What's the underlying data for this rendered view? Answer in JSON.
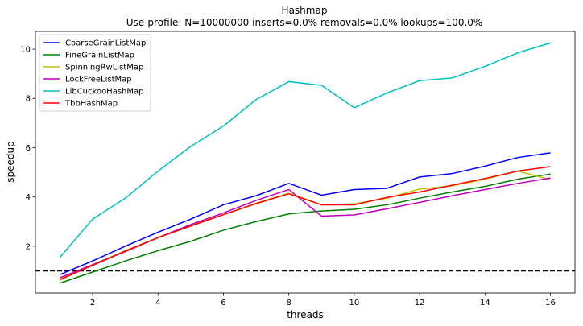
{
  "chart_data": {
    "type": "line",
    "title": "Hashmap",
    "subtitle": "Use-profile: N=10000000 inserts=0.0% removals=0.0% lookups=100.0%",
    "xlabel": "threads",
    "ylabel": "speedup",
    "xlim": [
      0.25,
      16.75
    ],
    "ylim": [
      0.1,
      10.72
    ],
    "xticks": [
      2,
      4,
      6,
      8,
      10,
      12,
      14,
      16
    ],
    "yticks": [
      2,
      4,
      6,
      8,
      10
    ],
    "grid": false,
    "legend_position": "top-left",
    "x": [
      1,
      2,
      3,
      4,
      5,
      6,
      7,
      8,
      9,
      10,
      11,
      12,
      13,
      14,
      15,
      16
    ],
    "reference_line": {
      "y": 1.0,
      "style": "dashed",
      "color": "#000000"
    },
    "series": [
      {
        "name": "CoarseGrainListMap",
        "color": "#0000ff",
        "values": [
          0.85,
          1.4,
          2.0,
          2.57,
          3.1,
          3.68,
          4.05,
          4.55,
          4.07,
          4.3,
          4.35,
          4.81,
          4.95,
          5.25,
          5.6,
          5.79
        ]
      },
      {
        "name": "FineGrainListMap",
        "color": "#008000",
        "values": [
          0.5,
          0.95,
          1.4,
          1.82,
          2.2,
          2.65,
          3.0,
          3.31,
          3.43,
          3.5,
          3.68,
          3.95,
          4.2,
          4.43,
          4.72,
          4.93
        ]
      },
      {
        "name": "SpinningRwListMap",
        "color": "#bfbf00",
        "values": [
          0.62,
          1.25,
          1.82,
          2.35,
          2.85,
          3.28,
          3.75,
          4.15,
          3.68,
          3.72,
          3.95,
          4.32,
          4.45,
          4.72,
          5.05,
          4.7
        ]
      },
      {
        "name": "LockFreeListMap",
        "color": "#bf00bf",
        "values": [
          0.72,
          1.25,
          1.78,
          2.35,
          2.88,
          3.35,
          3.86,
          4.3,
          3.22,
          3.27,
          3.52,
          3.78,
          4.05,
          4.3,
          4.55,
          4.77
        ]
      },
      {
        "name": "LibCuckooHashMap",
        "color": "#00bfbf",
        "values": [
          1.55,
          3.1,
          3.95,
          5.05,
          6.05,
          6.88,
          7.95,
          8.68,
          8.53,
          7.62,
          8.22,
          8.72,
          8.83,
          9.3,
          9.85,
          10.25
        ]
      },
      {
        "name": "TbbHashMap",
        "color": "#ff0000",
        "values": [
          0.65,
          1.22,
          1.8,
          2.35,
          2.82,
          3.28,
          3.73,
          4.13,
          3.68,
          3.68,
          3.98,
          4.2,
          4.48,
          4.75,
          5.05,
          5.23
        ]
      }
    ]
  }
}
